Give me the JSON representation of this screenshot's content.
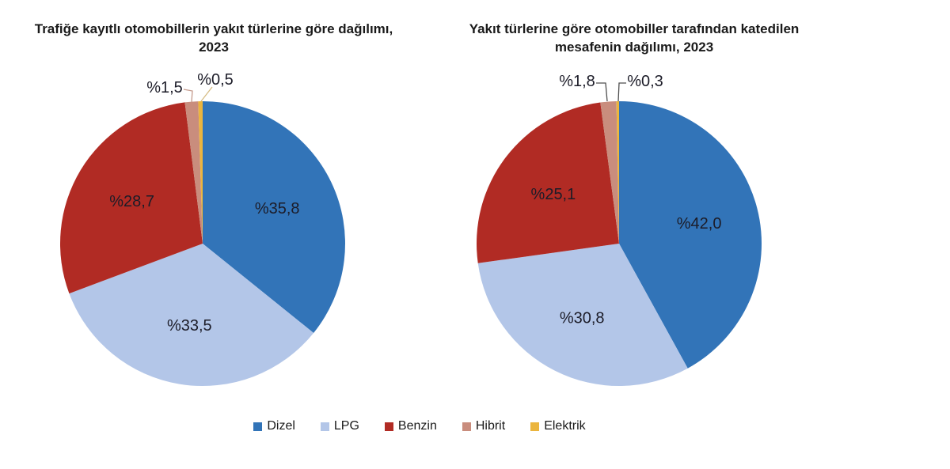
{
  "page": {
    "background": "#ffffff"
  },
  "legend": {
    "position": "bottom",
    "items": [
      {
        "label": "Dizel",
        "color": "#3274B8"
      },
      {
        "label": "LPG",
        "color": "#B3C6E8"
      },
      {
        "label": "Benzin",
        "color": "#B12B24"
      },
      {
        "label": "Hibrit",
        "color": "#C98D7D"
      },
      {
        "label": "Elektrik",
        "color": "#EBB53E"
      }
    ]
  },
  "chart_data": [
    {
      "type": "pie",
      "title": "Trafiğe kayıtlı otomobillerin yakıt türlerine göre dağılımı, 2023",
      "unit": "percent",
      "start_angle": "12-oclock-clockwise",
      "slices": [
        {
          "name": "Dizel",
          "value": 35.8,
          "label": "%35,8",
          "color": "#3274B8"
        },
        {
          "name": "LPG",
          "value": 33.5,
          "label": "%33,5",
          "color": "#B3C6E8"
        },
        {
          "name": "Benzin",
          "value": 28.7,
          "label": "%28,7",
          "color": "#B12B24"
        },
        {
          "name": "Hibrit",
          "value": 1.5,
          "label": "%1,5",
          "color": "#C98D7D",
          "callout": true
        },
        {
          "name": "Elektrik",
          "value": 0.5,
          "label": "%0,5",
          "color": "#EBB53E",
          "callout": true
        }
      ]
    },
    {
      "type": "pie",
      "title": "Yakıt türlerine göre otomobiller tarafından katedilen mesafenin dağılımı, 2023",
      "unit": "percent",
      "start_angle": "12-oclock-clockwise",
      "slices": [
        {
          "name": "Dizel",
          "value": 42.0,
          "label": "%42,0",
          "color": "#3274B8"
        },
        {
          "name": "LPG",
          "value": 30.8,
          "label": "%30,8",
          "color": "#B3C6E8"
        },
        {
          "name": "Benzin",
          "value": 25.1,
          "label": "%25,1",
          "color": "#B12B24"
        },
        {
          "name": "Hibrit",
          "value": 1.8,
          "label": "%1,8",
          "color": "#C98D7D",
          "callout": true
        },
        {
          "name": "Elektrik",
          "value": 0.3,
          "label": "%0,3",
          "color": "#EBB53E",
          "callout": true
        }
      ]
    }
  ]
}
